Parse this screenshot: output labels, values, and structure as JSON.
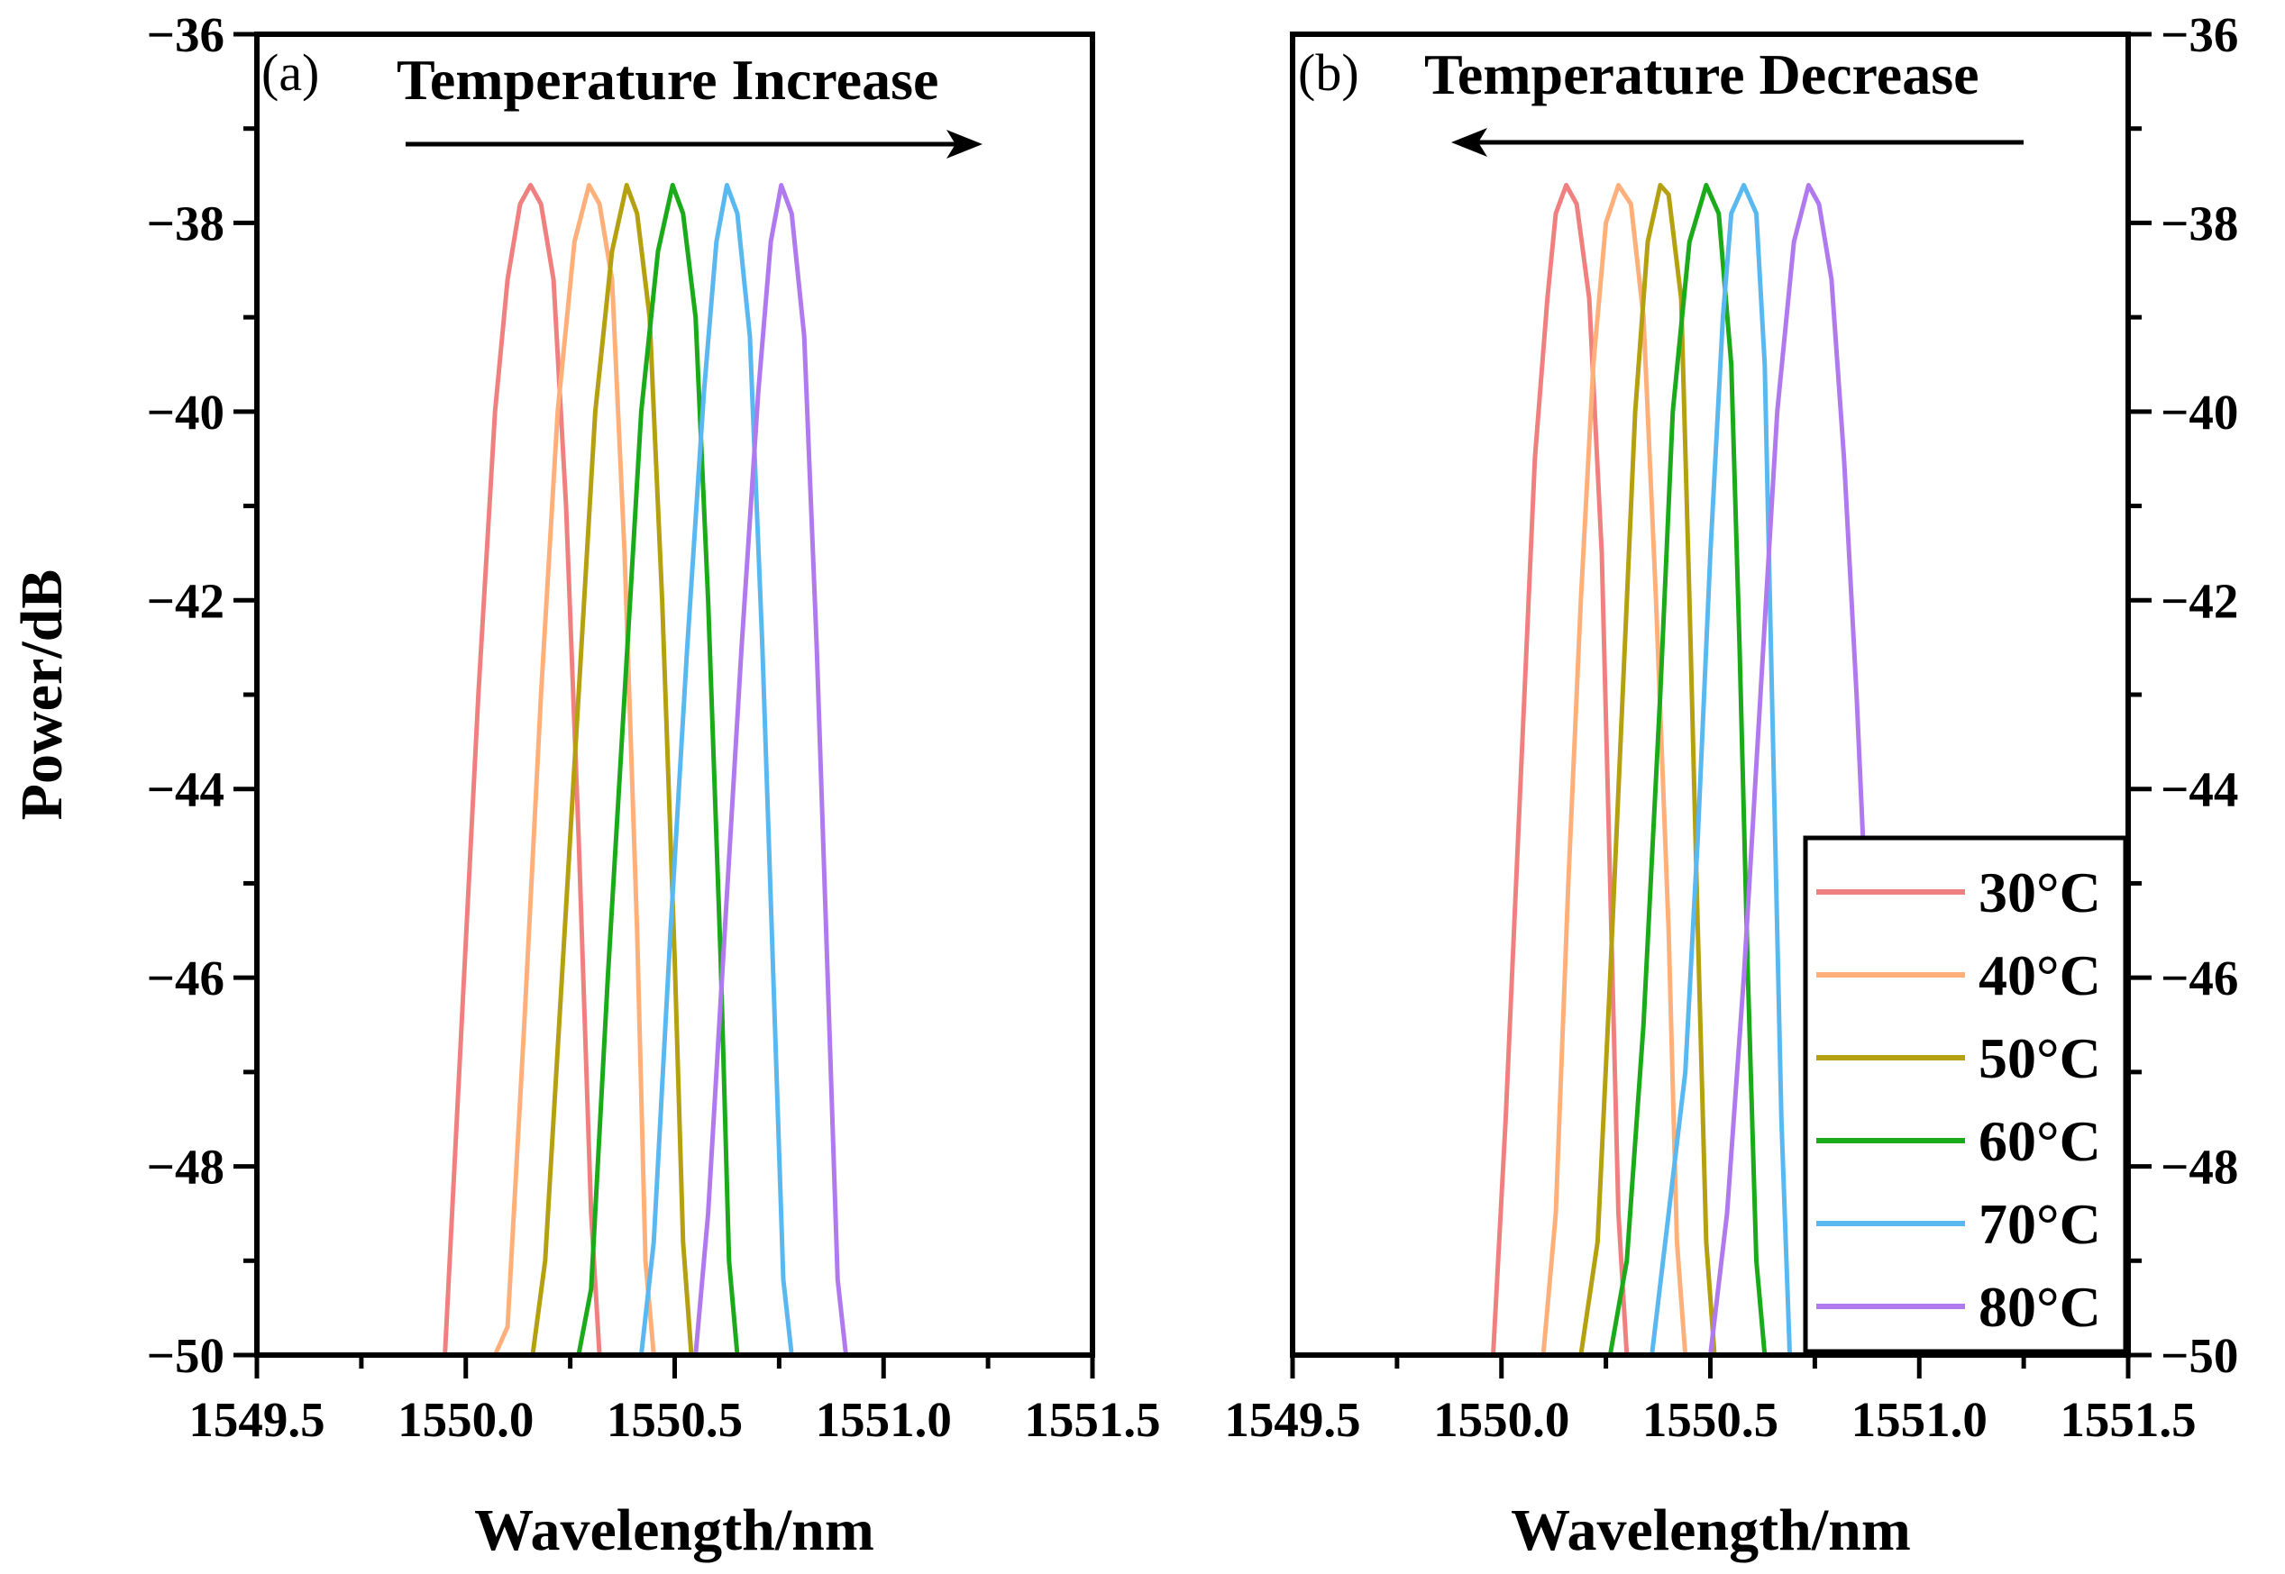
{
  "chart_data": [
    {
      "type": "line",
      "panel": "(a)",
      "title": "Temperature Increase",
      "arrow_direction": "right",
      "xlabel": "Wavelength/nm",
      "ylabel": "Power/dB",
      "xlim": [
        1549.5,
        1551.5
      ],
      "ylim": [
        -50,
        -36
      ],
      "xticks": [
        1549.5,
        1550.0,
        1550.5,
        1551.0,
        1551.5
      ],
      "xtick_labels": [
        "1549.5",
        "1550.0",
        "1550.5",
        "1551.0",
        "1551.5"
      ],
      "yticks": [
        -50,
        -48,
        -46,
        -44,
        -42,
        -40,
        -38,
        -36
      ],
      "ytick_labels": [
        "−50",
        "−48",
        "−46",
        "−44",
        "−42",
        "−40",
        "−38",
        "−36"
      ],
      "yaxis_side": "left",
      "series": [
        {
          "name": "30°C",
          "color": "#F08080",
          "x": [
            1549.95,
            1549.99,
            1550.03,
            1550.07,
            1550.1,
            1550.13,
            1550.155,
            1550.18,
            1550.21,
            1550.24,
            1550.27,
            1550.3,
            1550.32
          ],
          "y": [
            -50,
            -46.5,
            -43.0,
            -40.0,
            -38.6,
            -37.8,
            -37.6,
            -37.8,
            -38.6,
            -41.0,
            -44.5,
            -48.5,
            -50
          ]
        },
        {
          "name": "40°C",
          "color": "#FFB07A",
          "x": [
            1550.07,
            1550.1,
            1550.14,
            1550.18,
            1550.22,
            1550.26,
            1550.295,
            1550.32,
            1550.35,
            1550.38,
            1550.41,
            1550.43,
            1550.45
          ],
          "y": [
            -50,
            -49.7,
            -46.5,
            -43.0,
            -40.0,
            -38.2,
            -37.6,
            -37.8,
            -38.6,
            -41.5,
            -45.5,
            -49.0,
            -50
          ]
        },
        {
          "name": "50°C",
          "color": "#B5A00F",
          "x": [
            1550.16,
            1550.19,
            1550.23,
            1550.27,
            1550.31,
            1550.35,
            1550.385,
            1550.41,
            1550.44,
            1550.47,
            1550.5,
            1550.52,
            1550.54
          ],
          "y": [
            -50,
            -49.0,
            -46.0,
            -43.0,
            -40.0,
            -38.3,
            -37.6,
            -37.9,
            -39.0,
            -42.0,
            -45.8,
            -48.8,
            -50
          ]
        },
        {
          "name": "60°C",
          "color": "#1AAA1A",
          "x": [
            1550.27,
            1550.3,
            1550.34,
            1550.38,
            1550.42,
            1550.46,
            1550.495,
            1550.52,
            1550.55,
            1550.58,
            1550.61,
            1550.63,
            1550.65
          ],
          "y": [
            -50,
            -49.3,
            -46.0,
            -43.0,
            -40.0,
            -38.3,
            -37.6,
            -37.9,
            -39.0,
            -42.0,
            -45.8,
            -49.0,
            -50
          ]
        },
        {
          "name": "70°C",
          "color": "#5AB8F0",
          "x": [
            1550.42,
            1550.45,
            1550.49,
            1550.53,
            1550.57,
            1550.6,
            1550.625,
            1550.65,
            1550.68,
            1550.71,
            1550.74,
            1550.76,
            1550.78
          ],
          "y": [
            -50,
            -48.8,
            -45.5,
            -42.5,
            -39.8,
            -38.2,
            -37.6,
            -37.9,
            -39.2,
            -42.5,
            -46.5,
            -49.2,
            -50
          ]
        },
        {
          "name": "80°C",
          "color": "#B07AEE",
          "x": [
            1550.55,
            1550.58,
            1550.62,
            1550.66,
            1550.7,
            1550.73,
            1550.755,
            1550.78,
            1550.81,
            1550.84,
            1550.87,
            1550.89,
            1550.91
          ],
          "y": [
            -50,
            -48.5,
            -45.5,
            -42.5,
            -39.8,
            -38.2,
            -37.6,
            -37.9,
            -39.2,
            -42.5,
            -46.5,
            -49.2,
            -50
          ]
        }
      ]
    },
    {
      "type": "line",
      "panel": "(b)",
      "title": "Temperature Decrease",
      "arrow_direction": "left",
      "xlabel": "Wavelength/nm",
      "ylabel": "",
      "xlim": [
        1549.5,
        1551.5
      ],
      "ylim": [
        -50,
        -36
      ],
      "xticks": [
        1549.5,
        1550.0,
        1550.5,
        1551.0,
        1551.5
      ],
      "xtick_labels": [
        "1549.5",
        "1550.0",
        "1550.5",
        "1551.0",
        "1551.5"
      ],
      "yticks": [
        -50,
        -48,
        -46,
        -44,
        -42,
        -40,
        -38,
        -36
      ],
      "ytick_labels": [
        "−50",
        "−48",
        "−46",
        "−44",
        "−42",
        "−40",
        "−38",
        "−36"
      ],
      "yaxis_side": "right",
      "legend": {
        "placement": "bottom-right"
      },
      "series": [
        {
          "name": "30°C",
          "color": "#F08080",
          "x": [
            1549.98,
            1550.01,
            1550.05,
            1550.08,
            1550.11,
            1550.13,
            1550.155,
            1550.18,
            1550.21,
            1550.24,
            1550.26,
            1550.28,
            1550.3
          ],
          "y": [
            -50,
            -47.5,
            -43.5,
            -40.5,
            -38.8,
            -37.9,
            -37.6,
            -37.8,
            -38.8,
            -41.5,
            -45.0,
            -48.5,
            -50
          ]
        },
        {
          "name": "40°C",
          "color": "#FFB07A",
          "x": [
            1550.1,
            1550.13,
            1550.16,
            1550.19,
            1550.22,
            1550.25,
            1550.28,
            1550.31,
            1550.34,
            1550.37,
            1550.4,
            1550.42,
            1550.44
          ],
          "y": [
            -50,
            -48.5,
            -45.0,
            -42.0,
            -39.5,
            -38.0,
            -37.6,
            -37.8,
            -39.0,
            -42.0,
            -45.5,
            -48.8,
            -50
          ]
        },
        {
          "name": "50°C",
          "color": "#B5A00F",
          "x": [
            1550.19,
            1550.23,
            1550.26,
            1550.29,
            1550.32,
            1550.35,
            1550.38,
            1550.4,
            1550.43,
            1550.45,
            1550.47,
            1550.49,
            1550.51
          ],
          "y": [
            -50,
            -48.8,
            -46.0,
            -43.0,
            -40.0,
            -38.2,
            -37.6,
            -37.7,
            -38.8,
            -42.0,
            -45.5,
            -48.8,
            -50
          ]
        },
        {
          "name": "60°C",
          "color": "#1AAA1A",
          "x": [
            1550.26,
            1550.3,
            1550.34,
            1550.38,
            1550.41,
            1550.45,
            1550.49,
            1550.52,
            1550.55,
            1550.57,
            1550.59,
            1550.61,
            1550.63
          ],
          "y": [
            -50,
            -49.0,
            -46.5,
            -43.0,
            -40.0,
            -38.2,
            -37.6,
            -37.9,
            -39.5,
            -42.5,
            -46.0,
            -49.0,
            -50
          ]
        },
        {
          "name": "70°C",
          "color": "#5AB8F0",
          "x": [
            1550.36,
            1550.4,
            1550.44,
            1550.47,
            1550.5,
            1550.53,
            1550.55,
            1550.58,
            1550.61,
            1550.63,
            1550.65,
            1550.67,
            1550.69
          ],
          "y": [
            -50,
            -48.5,
            -47.0,
            -44.5,
            -41.5,
            -39.0,
            -37.9,
            -37.6,
            -37.9,
            -39.5,
            -43.5,
            -47.5,
            -50
          ]
        },
        {
          "name": "80°C",
          "color": "#B07AEE",
          "x": [
            1550.5,
            1550.54,
            1550.58,
            1550.62,
            1550.66,
            1550.7,
            1550.735,
            1550.76,
            1550.79,
            1550.82,
            1550.85,
            1550.87
          ],
          "y": [
            -50,
            -48.5,
            -46.0,
            -43.0,
            -40.0,
            -38.2,
            -37.6,
            -37.8,
            -38.6,
            -40.5,
            -43.0,
            -45.0
          ]
        }
      ]
    }
  ]
}
